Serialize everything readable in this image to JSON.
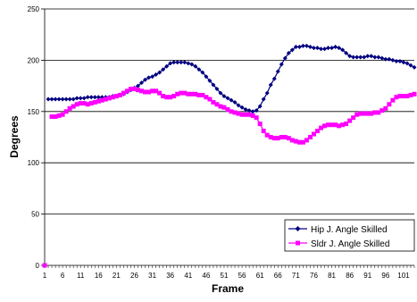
{
  "chart_data": {
    "type": "line",
    "title": "",
    "xlabel": "Frame",
    "ylabel": "Degrees",
    "ylim": [
      0,
      250
    ],
    "yticks": [
      "0",
      "50",
      "100",
      "150",
      "200",
      "250"
    ],
    "xticks": [
      "1",
      "6",
      "11",
      "16",
      "21",
      "26",
      "31",
      "36",
      "41",
      "46",
      "51",
      "56",
      "61",
      "66",
      "71",
      "76",
      "81",
      "86",
      "91",
      "96",
      "101"
    ],
    "x": [
      1,
      2,
      3,
      4,
      5,
      6,
      7,
      8,
      9,
      10,
      11,
      12,
      13,
      14,
      15,
      16,
      17,
      18,
      19,
      20,
      21,
      22,
      23,
      24,
      25,
      26,
      27,
      28,
      29,
      30,
      31,
      32,
      33,
      34,
      35,
      36,
      37,
      38,
      39,
      40,
      41,
      42,
      43,
      44,
      45,
      46,
      47,
      48,
      49,
      50,
      51,
      52,
      53,
      54,
      55,
      56,
      57,
      58,
      59,
      60,
      61,
      62,
      63,
      64,
      65,
      66,
      67,
      68,
      69,
      70,
      71,
      72,
      73,
      74,
      75,
      76,
      77,
      78,
      79,
      80,
      81,
      82,
      83,
      84,
      85,
      86,
      87,
      88,
      89,
      90,
      91,
      92,
      93,
      94,
      95,
      96,
      97,
      98,
      99,
      100,
      101,
      102,
      103,
      104
    ],
    "grid": "horizontal",
    "legend_position": "bottom-right",
    "series": [
      {
        "name": "Hip J. Angle Skilled",
        "color": "#000080",
        "marker": "diamond",
        "values": [
          null,
          162,
          162,
          162,
          162,
          162,
          162,
          162,
          162,
          163,
          163,
          163,
          164,
          164,
          164,
          164,
          164,
          164,
          164,
          165,
          165,
          166,
          167,
          169,
          171,
          173,
          175,
          178,
          181,
          183,
          184,
          186,
          188,
          191,
          194,
          197,
          198,
          198,
          198,
          198,
          197,
          196,
          194,
          191,
          188,
          184,
          180,
          176,
          172,
          168,
          165,
          163,
          161,
          159,
          156,
          154,
          152,
          151,
          150,
          151,
          155,
          162,
          168,
          176,
          182,
          189,
          196,
          202,
          207,
          210,
          213,
          213,
          214,
          214,
          213,
          212,
          212,
          211,
          211,
          212,
          212,
          213,
          212,
          210,
          207,
          204,
          203,
          203,
          203,
          203,
          204,
          204,
          203,
          203,
          202,
          201,
          201,
          200,
          199,
          199,
          198,
          197,
          195,
          193
        ]
      },
      {
        "name": "Sldr J. Angle Skilled",
        "color": "#ff00ff",
        "marker": "square",
        "values": [
          0,
          null,
          145,
          145,
          146,
          147,
          150,
          153,
          155,
          157,
          158,
          158,
          157,
          158,
          159,
          160,
          161,
          162,
          163,
          164,
          165,
          166,
          168,
          170,
          172,
          172,
          171,
          170,
          169,
          169,
          170,
          170,
          168,
          165,
          164,
          164,
          165,
          167,
          168,
          168,
          167,
          167,
          167,
          166,
          166,
          164,
          162,
          159,
          157,
          155,
          154,
          152,
          150,
          149,
          148,
          147,
          147,
          147,
          146,
          144,
          138,
          131,
          127,
          125,
          124,
          124,
          125,
          125,
          124,
          122,
          121,
          120,
          120,
          122,
          125,
          128,
          131,
          134,
          136,
          137,
          137,
          137,
          136,
          137,
          138,
          141,
          144,
          147,
          148,
          148,
          148,
          148,
          149,
          149,
          151,
          153,
          157,
          161,
          164,
          165,
          165,
          165,
          166,
          167
        ]
      }
    ]
  }
}
